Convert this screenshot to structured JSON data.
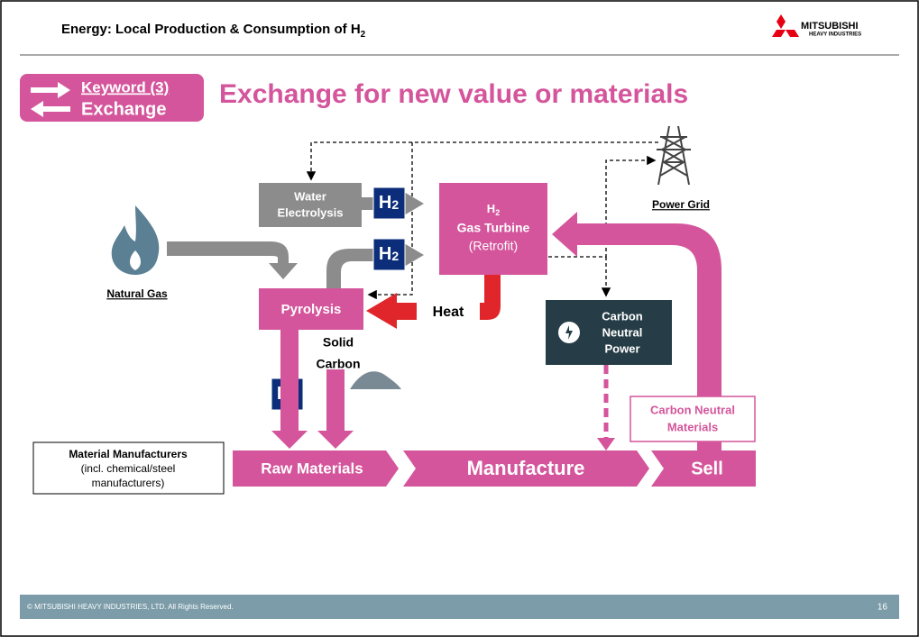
{
  "header": {
    "title": "Energy: Local Production & Consumption of H",
    "title_sub": "2",
    "logo_top": "MITSUBISHI",
    "logo_bottom": "HEAVY INDUSTRIES"
  },
  "keyword": {
    "label": "Keyword (3)",
    "word": "Exchange"
  },
  "title": "Exchange for new value or materials",
  "nodes": [
    {
      "id": "water",
      "lines": [
        "Water",
        "Electrolysis"
      ]
    },
    {
      "id": "turbine",
      "lines": [
        "H",
        "Gas Turbine",
        "(Retrofit)"
      ],
      "sub": "2"
    },
    {
      "id": "grid",
      "lines": [
        "Power Grid"
      ]
    },
    {
      "id": "gas",
      "lines": [
        "Natural Gas"
      ]
    },
    {
      "id": "pyrolysis",
      "lines": [
        "Pyrolysis"
      ]
    },
    {
      "id": "power",
      "lines": [
        "Carbon",
        "Neutral",
        "Power"
      ]
    },
    {
      "id": "carbon",
      "lines": [
        "Solid",
        "Carbon"
      ]
    },
    {
      "id": "materials",
      "lines": [
        "Carbon Neutral",
        "Materials"
      ]
    },
    {
      "id": "makers",
      "lines": [
        "Material Manufacturers",
        "(incl. chemical/steel",
        "manufacturers)"
      ]
    }
  ],
  "h2_badge": {
    "main": "H",
    "sub": "2"
  },
  "heat": "Heat",
  "flow": [
    "Raw Materials",
    "Manufacture",
    "Sell"
  ],
  "footer": {
    "copyright": "© MITSUBISHI HEAVY INDUSTRIES, LTD.  All Rights Reserved.",
    "page": "16"
  }
}
